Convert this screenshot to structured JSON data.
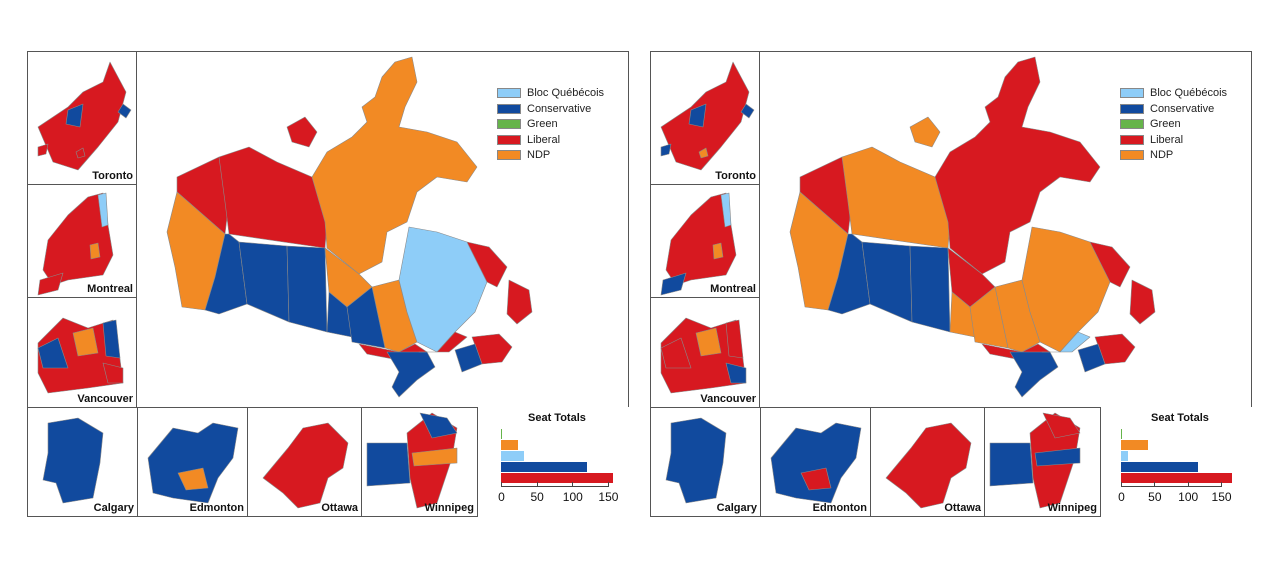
{
  "colors": {
    "bloc": "#8ecdf8",
    "conservative": "#114a9e",
    "green": "#66b44a",
    "liberal": "#d71920",
    "ndp": "#f28a24"
  },
  "legend": [
    {
      "key": "bloc",
      "label": "Bloc Québécois"
    },
    {
      "key": "conservative",
      "label": "Conservative"
    },
    {
      "key": "green",
      "label": "Green"
    },
    {
      "key": "liberal",
      "label": "Liberal"
    },
    {
      "key": "ndp",
      "label": "NDP"
    }
  ],
  "panels": [
    {
      "id": "left",
      "insets": {
        "toronto": "Toronto",
        "montreal": "Montreal",
        "vancouver": "Vancouver",
        "calgary": "Calgary",
        "edmonton": "Edmonton",
        "ottawa": "Ottawa",
        "winnipeg": "Winnipeg"
      },
      "seat_totals_title": "Seat Totals",
      "seat_totals": {
        "green": 1,
        "ndp": 24,
        "bloc": 32,
        "conservative": 121,
        "liberal": 157
      },
      "regions": {
        "yukon": "liberal",
        "nwt": "liberal",
        "nunavut": "ndp",
        "arctic_west": "liberal",
        "bc_coast": "ndp",
        "bc_interior": "conservative",
        "alberta": "conservative",
        "saskatchewan": "conservative",
        "manitoba_north": "ndp",
        "manitoba_south": "conservative",
        "ontario_north": "ndp",
        "ontario_nw": "conservative",
        "ontario_south": "conservative",
        "ontario_east": "liberal",
        "quebec": "bloc",
        "quebec_south": "liberal",
        "labrador": "liberal",
        "newfoundland": "liberal",
        "maritimes": "liberal",
        "nb": "conservative"
      }
    },
    {
      "id": "right",
      "insets": {
        "toronto": "Toronto",
        "montreal": "Montreal",
        "vancouver": "Vancouver",
        "calgary": "Calgary",
        "edmonton": "Edmonton",
        "ottawa": "Ottawa",
        "winnipeg": "Winnipeg"
      },
      "seat_totals_title": "Seat Totals",
      "seat_totals": {
        "green": 1,
        "ndp": 40,
        "bloc": 10,
        "conservative": 116,
        "liberal": 166
      },
      "regions": {
        "yukon": "liberal",
        "nwt": "ndp",
        "nunavut": "liberal",
        "arctic_west": "ndp",
        "bc_coast": "ndp",
        "bc_interior": "conservative",
        "alberta": "conservative",
        "saskatchewan": "conservative",
        "manitoba_north": "liberal",
        "manitoba_south": "ndp",
        "ontario_north": "ndp",
        "ontario_nw": "ndp",
        "ontario_south": "conservative",
        "ontario_east": "liberal",
        "quebec": "ndp",
        "quebec_south": "bloc",
        "labrador": "liberal",
        "newfoundland": "liberal",
        "maritimes": "liberal",
        "nb": "conservative"
      }
    }
  ],
  "chart_data": [
    {
      "type": "bar",
      "title": "Seat Totals",
      "orientation": "horizontal",
      "categories": [
        "Green",
        "NDP",
        "Bloc Québécois",
        "Conservative",
        "Liberal"
      ],
      "values": [
        1,
        24,
        32,
        121,
        157
      ],
      "xticks": [
        0,
        50,
        100,
        150
      ],
      "xlim": [
        0,
        160
      ]
    },
    {
      "type": "bar",
      "title": "Seat Totals",
      "orientation": "horizontal",
      "categories": [
        "Green",
        "NDP",
        "Bloc Québécois",
        "Conservative",
        "Liberal"
      ],
      "values": [
        1,
        40,
        10,
        116,
        166
      ],
      "xticks": [
        0,
        50,
        100,
        150
      ],
      "xlim": [
        0,
        170
      ]
    }
  ]
}
